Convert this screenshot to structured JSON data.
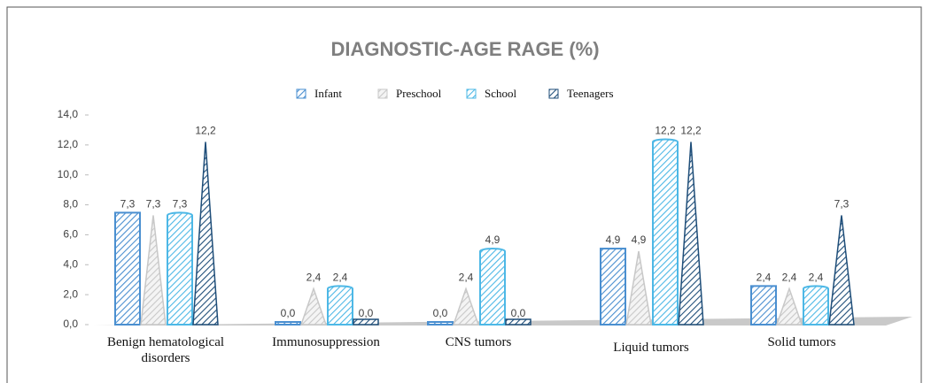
{
  "chart_data": {
    "type": "bar3d",
    "title": "DIAGNOSTIC-AGE RAGE (%)",
    "categories": [
      "Benign hematological disorders",
      "Immunosuppression",
      "CNS tumors",
      "Liquid tumors",
      "Solid tumors"
    ],
    "series": [
      {
        "name": "Infant",
        "color": "#4a8fd0",
        "values": [
          7.3,
          0,
          0,
          4.9,
          2.4
        ],
        "value_labels": [
          "7,3",
          "0,0",
          "0,0",
          "4,9",
          "2,4"
        ]
      },
      {
        "name": "Preschool",
        "color": "#c8c8c8",
        "values": [
          7.3,
          2.4,
          2.4,
          4.9,
          2.4
        ],
        "value_labels": [
          "7,3",
          "2,4",
          "2,4",
          "4,9",
          "2,4"
        ]
      },
      {
        "name": "School",
        "color": "#4db8e6",
        "values": [
          7.3,
          2.4,
          4.9,
          12.2,
          2.4
        ],
        "value_labels": [
          "7,3",
          "2,4",
          "4,9",
          "12,2",
          "2,4"
        ]
      },
      {
        "name": "Teenagers",
        "color": "#1f4e79",
        "values": [
          12.2,
          0,
          0,
          12.2,
          7.3
        ],
        "value_labels": [
          "12,2",
          "0,0",
          "0,0",
          "12,2",
          "7,3"
        ]
      }
    ],
    "ylim": [
      0,
      14
    ],
    "yticks": [
      {
        "value": 0,
        "label": "0,0"
      },
      {
        "value": 2,
        "label": "2,0"
      },
      {
        "value": 4,
        "label": "4,0"
      },
      {
        "value": 6,
        "label": "6,0"
      },
      {
        "value": 8,
        "label": "8,0"
      },
      {
        "value": 10,
        "label": "10,0"
      },
      {
        "value": 12,
        "label": "12,0"
      },
      {
        "value": 14,
        "label": "14,0"
      }
    ]
  }
}
